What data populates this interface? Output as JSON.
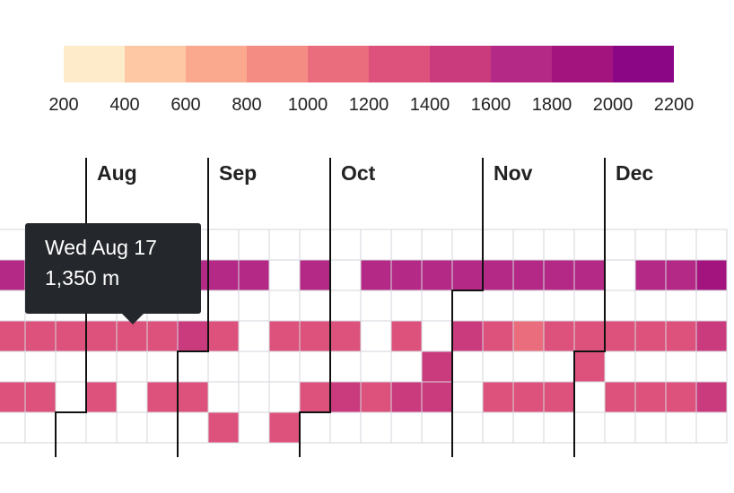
{
  "chart_data": {
    "type": "heatmap",
    "legend": {
      "ticks": [
        "200",
        "400",
        "600",
        "800",
        "1000",
        "1200",
        "1400",
        "1600",
        "1800",
        "2000",
        "2200"
      ],
      "colors": [
        "#fdebc9",
        "#fdc8a3",
        "#fba98e",
        "#f48c83",
        "#e96d7d",
        "#dc527c",
        "#ca3b7e",
        "#b42986",
        "#a3147f",
        "#8b0685"
      ]
    },
    "months": [
      "Aug",
      "Sep",
      "Oct",
      "Nov",
      "Dec"
    ],
    "rows": [
      [
        null,
        null,
        null,
        null,
        null,
        null,
        null,
        null,
        null,
        null,
        null,
        null,
        null,
        null,
        null,
        null,
        null,
        null,
        null,
        null,
        null,
        null,
        null,
        null
      ],
      [
        1750,
        1750,
        1750,
        1750,
        1750,
        1750,
        1750,
        1750,
        1750,
        null,
        1750,
        null,
        1750,
        1750,
        1750,
        1600,
        1750,
        1750,
        1600,
        1600,
        null,
        1750,
        1750,
        1950
      ],
      [
        null,
        null,
        null,
        null,
        null,
        null,
        null,
        null,
        null,
        null,
        null,
        null,
        null,
        null,
        null,
        null,
        null,
        null,
        null,
        null,
        null,
        null,
        null,
        null
      ],
      [
        1200,
        1200,
        1200,
        1200,
        1350,
        1350,
        1500,
        1200,
        null,
        1350,
        1350,
        1350,
        null,
        1350,
        null,
        1500,
        1350,
        1050,
        1200,
        1350,
        1350,
        1200,
        1200,
        1500
      ],
      [
        null,
        null,
        null,
        null,
        null,
        null,
        null,
        null,
        null,
        null,
        null,
        null,
        null,
        null,
        1500,
        null,
        null,
        null,
        null,
        1350,
        null,
        null,
        null,
        null
      ],
      [
        1350,
        1200,
        null,
        1350,
        null,
        1350,
        1200,
        null,
        null,
        null,
        1200,
        1500,
        1350,
        1500,
        1500,
        null,
        1350,
        1350,
        1200,
        null,
        1200,
        1200,
        1200,
        1500
      ],
      [
        null,
        null,
        null,
        null,
        null,
        null,
        null,
        1200,
        null,
        1350,
        null,
        null,
        null,
        null,
        null,
        null,
        null,
        null,
        null,
        null,
        null,
        null,
        null,
        null
      ]
    ],
    "tooltip": {
      "date": "Wed Aug 17",
      "value": "1,350 m"
    }
  }
}
